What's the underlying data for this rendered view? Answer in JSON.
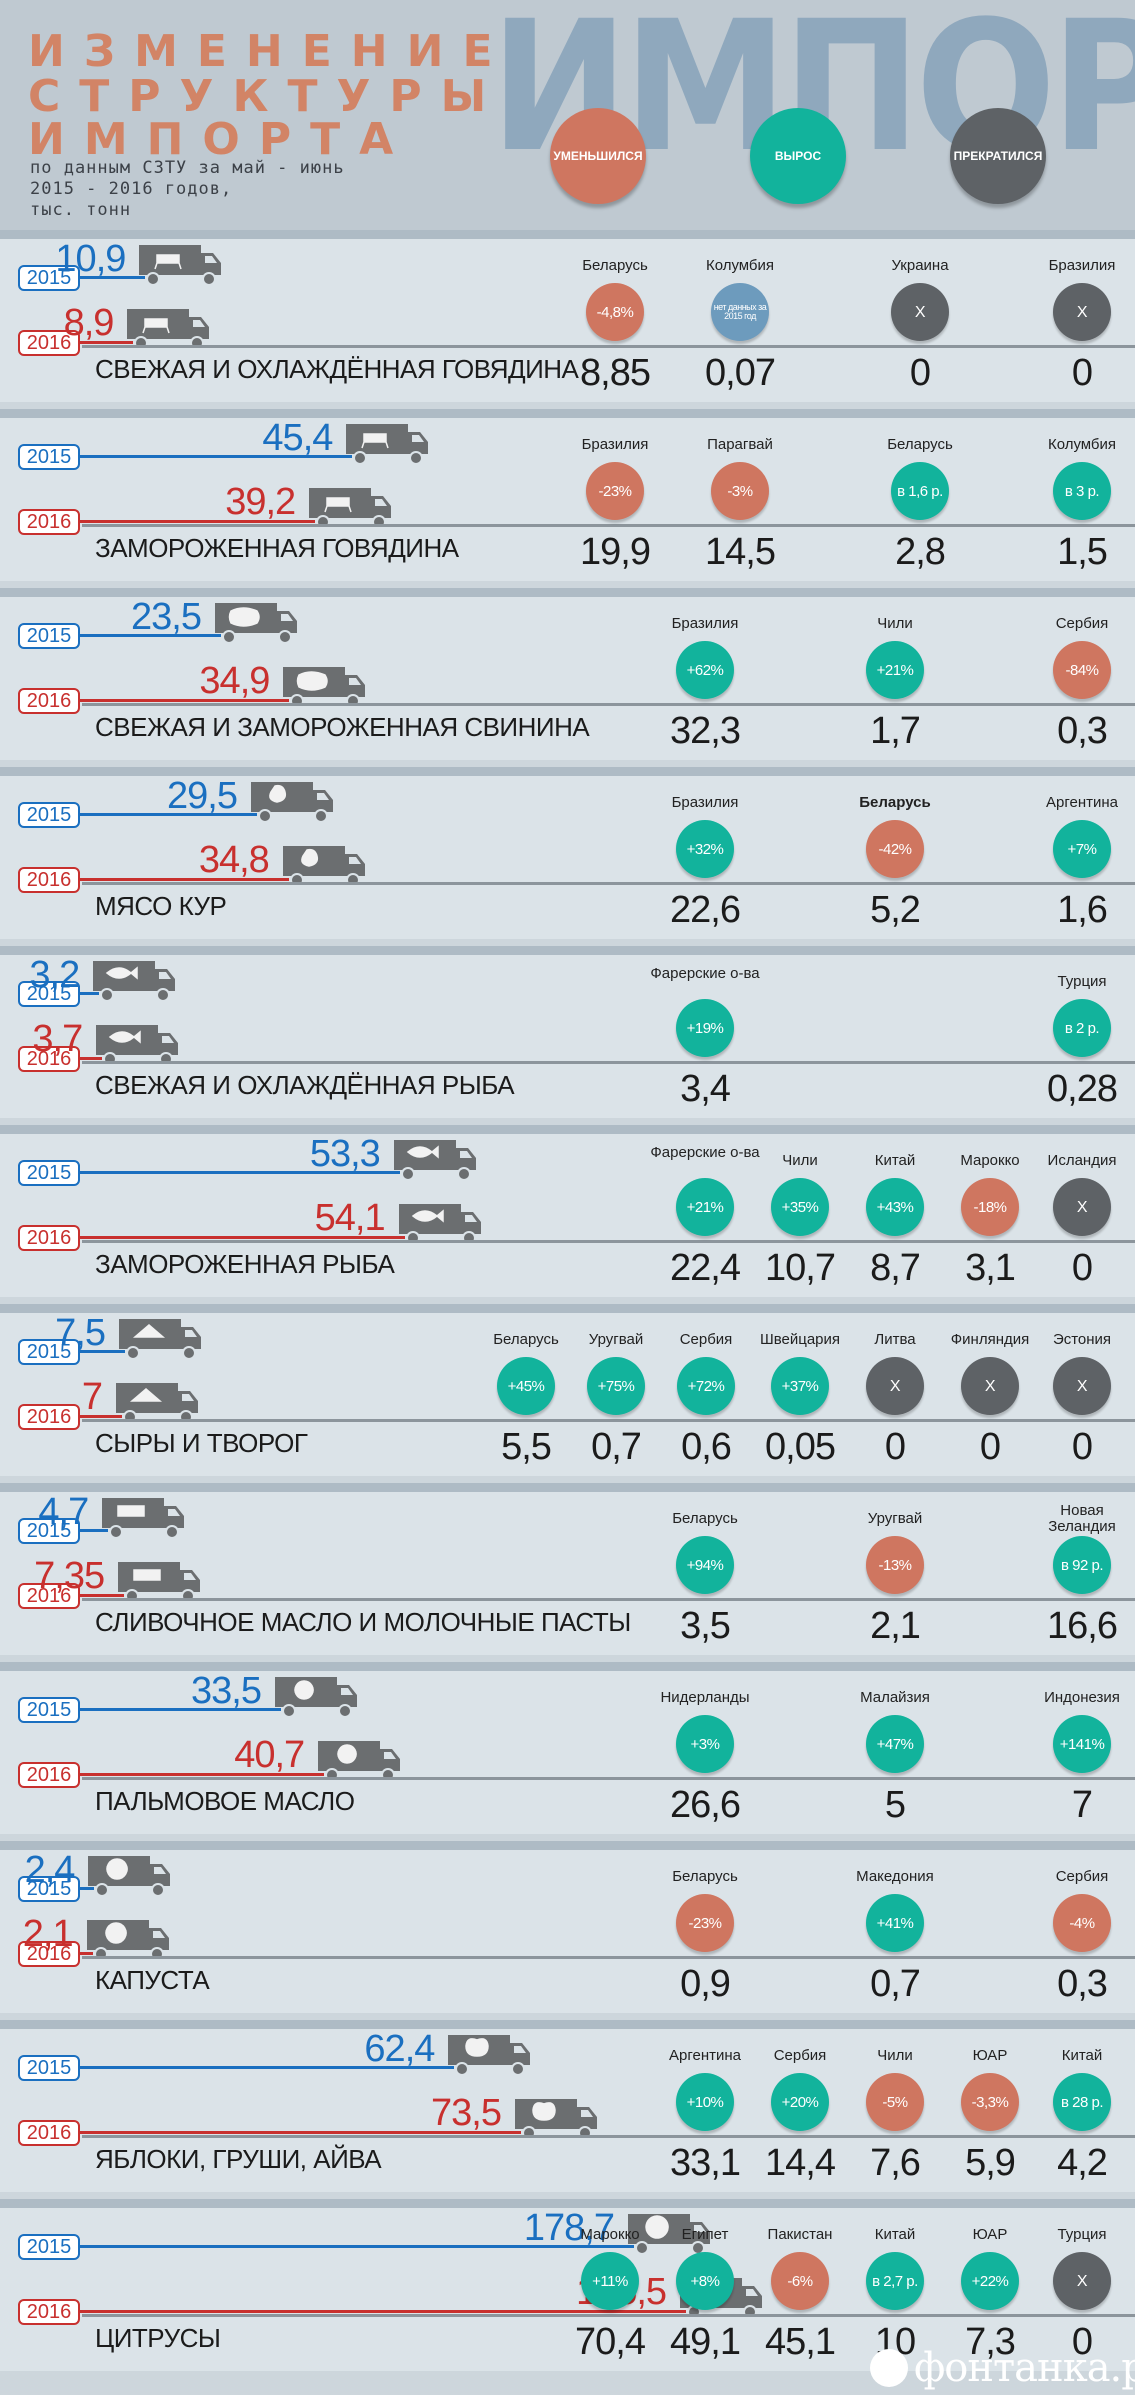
{
  "header": {
    "title_lines": [
      "ИЗМЕНЕНИЕ",
      "СТРУКТУРЫ",
      "ИМПОРТА"
    ],
    "subtitle_lines": [
      "по данным СЗТУ за май - июнь",
      "2015 - 2016 годов,",
      "тыс. тонн"
    ],
    "big_word": "ИМПОРТ",
    "legend": [
      {
        "label": "УМЕНЬШИЛСЯ",
        "color": "#cf7660",
        "icon": "decrease-circle"
      },
      {
        "label": "ВЫРОС",
        "color": "#12b39c",
        "icon": "increase-circle"
      },
      {
        "label": "ПРЕКРАТИЛСЯ",
        "color": "#5e6266",
        "icon": "stopped-circle"
      }
    ]
  },
  "year_labels": {
    "y2015": "2015",
    "y2016": "2016"
  },
  "colors": {
    "y2015": "#1a6fc0",
    "y2016": "#c8302e",
    "up": "#12b39c",
    "down": "#cf7660",
    "stopped": "#5e6266",
    "no_data": "#6d9bbd"
  },
  "chart_data": {
    "type": "bar",
    "title": "ИЗМЕНЕНИЕ СТРУКТУРЫ ИМПОРТА",
    "unit": "тыс. тонн",
    "series": [
      {
        "name": "2015",
        "values": [
          10.9,
          45.4,
          23.5,
          29.5,
          3.2,
          53.3,
          7.5,
          4.7,
          33.5,
          2.4,
          62.4,
          178.7
        ]
      },
      {
        "name": "2016",
        "values": [
          8.9,
          39.2,
          34.9,
          34.8,
          3.7,
          54.1,
          7,
          7.35,
          40.7,
          2.1,
          73.5,
          195.5
        ]
      }
    ],
    "categories": [
      "СВЕЖАЯ И ОХЛАЖДЁННАЯ ГОВЯДИНА",
      "ЗАМОРОЖЕННАЯ ГОВЯДИНА",
      "СВЕЖАЯ И ЗАМОРОЖЕННАЯ СВИНИНА",
      "МЯСО КУР",
      "СВЕЖАЯ И ОХЛАЖДЁННАЯ РЫБА",
      "ЗАМОРОЖЕННАЯ РЫБА",
      "СЫРЫ И ТВОРОГ",
      "СЛИВОЧНОЕ МАСЛО И МОЛОЧНЫЕ ПАСТЫ",
      "ПАЛЬМОВОЕ МАСЛО",
      "КАПУСТА",
      "ЯБЛОКИ, ГРУШИ, АЙВА",
      "ЦИТРУСЫ"
    ],
    "products": [
      {
        "name": "СВЕЖАЯ И ОХЛАЖДЁННАЯ ГОВЯДИНА",
        "v2015": "10,9",
        "v2016": "8,9",
        "n2015": 10.9,
        "n2016": 8.9,
        "icon": "cow-icon",
        "countries": [
          {
            "name": "Беларусь",
            "status": "down",
            "change": "-4,8%",
            "value": "8,85"
          },
          {
            "name": "Колумбия",
            "status": "nodata",
            "change": "нет данных за 2015 год",
            "value": "0,07"
          },
          {
            "name": "Украина",
            "status": "stop",
            "change": "X",
            "value": "0"
          },
          {
            "name": "Бразилия",
            "status": "stop",
            "change": "X",
            "value": "0"
          }
        ]
      },
      {
        "name": "ЗАМОРОЖЕННАЯ ГОВЯДИНА",
        "v2015": "45,4",
        "v2016": "39,2",
        "n2015": 45.4,
        "n2016": 39.2,
        "icon": "cow-icon",
        "countries": [
          {
            "name": "Бразилия",
            "status": "down",
            "change": "-23%",
            "value": "19,9"
          },
          {
            "name": "Парагвай",
            "status": "down",
            "change": "-3%",
            "value": "14,5"
          },
          {
            "name": "Беларусь",
            "status": "up",
            "change": "в 1,6 р.",
            "value": "2,8"
          },
          {
            "name": "Колумбия",
            "status": "up",
            "change": "в 3 р.",
            "value": "1,5"
          }
        ]
      },
      {
        "name": "СВЕЖАЯ И ЗАМОРОЖЕННАЯ СВИНИНА",
        "v2015": "23,5",
        "v2016": "34,9",
        "n2015": 23.5,
        "n2016": 34.9,
        "icon": "pig-icon",
        "countries": [
          {
            "name": "Бразилия",
            "status": "up",
            "change": "+62%",
            "value": "32,3"
          },
          {
            "name": "Чили",
            "status": "up",
            "change": "+21%",
            "value": "1,7"
          },
          {
            "name": "Сербия",
            "status": "down",
            "change": "-84%",
            "value": "0,3"
          }
        ]
      },
      {
        "name": "МЯСО КУР",
        "v2015": "29,5",
        "v2016": "34,8",
        "n2015": 29.5,
        "n2016": 34.8,
        "icon": "chicken-icon",
        "countries": [
          {
            "name": "Бразилия",
            "status": "up",
            "change": "+32%",
            "value": "22,6"
          },
          {
            "name": "Беларусь",
            "status": "down",
            "change": "-42%",
            "value": "5,2",
            "bold": true
          },
          {
            "name": "Аргентина",
            "status": "up",
            "change": "+7%",
            "value": "1,6"
          }
        ]
      },
      {
        "name": "СВЕЖАЯ И ОХЛАЖДЁННАЯ РЫБА",
        "v2015": "3,2",
        "v2016": "3,7",
        "n2015": 3.2,
        "n2016": 3.7,
        "icon": "fish-icon",
        "countries": [
          {
            "name": "Фарерские о-ва",
            "status": "up",
            "change": "+19%",
            "value": "3,4",
            "slot": 0
          },
          {
            "name": "Турция",
            "status": "up",
            "change": "в 2 р.",
            "value": "0,28",
            "slot": 2
          }
        ]
      },
      {
        "name": "ЗАМОРОЖЕННАЯ РЫБА",
        "v2015": "53,3",
        "v2016": "54,1",
        "n2015": 53.3,
        "n2016": 54.1,
        "icon": "fish-icon",
        "countries": [
          {
            "name": "Фарерские о-ва",
            "status": "up",
            "change": "+21%",
            "value": "22,4"
          },
          {
            "name": "Чили",
            "status": "up",
            "change": "+35%",
            "value": "10,7"
          },
          {
            "name": "Китай",
            "status": "up",
            "change": "+43%",
            "value": "8,7"
          },
          {
            "name": "Марокко",
            "status": "down",
            "change": "-18%",
            "value": "3,1"
          },
          {
            "name": "Исландия",
            "status": "stop",
            "change": "X",
            "value": "0"
          }
        ]
      },
      {
        "name": "СЫРЫ И ТВОРОГ",
        "v2015": "7,5",
        "v2016": "7",
        "n2015": 7.5,
        "n2016": 7,
        "icon": "cheese-icon",
        "countries": [
          {
            "name": "Беларусь",
            "status": "up",
            "change": "+45%",
            "value": "5,5"
          },
          {
            "name": "Уругвай",
            "status": "up",
            "change": "+75%",
            "value": "0,7"
          },
          {
            "name": "Сербия",
            "status": "up",
            "change": "+72%",
            "value": "0,6"
          },
          {
            "name": "Швейцария",
            "status": "up",
            "change": "+37%",
            "value": "0,05"
          },
          {
            "name": "Литва",
            "status": "stop",
            "change": "X",
            "value": "0"
          },
          {
            "name": "Финляндия",
            "status": "stop",
            "change": "X",
            "value": "0"
          },
          {
            "name": "Эстония",
            "status": "stop",
            "change": "X",
            "value": "0"
          }
        ]
      },
      {
        "name": "СЛИВОЧНОЕ МАСЛО И МОЛОЧНЫЕ ПАСТЫ",
        "v2015": "4,7",
        "v2016": "7,35",
        "n2015": 4.7,
        "n2016": 7.35,
        "icon": "butter-icon",
        "countries": [
          {
            "name": "Беларусь",
            "status": "up",
            "change": "+94%",
            "value": "3,5"
          },
          {
            "name": "Уругвай",
            "status": "down",
            "change": "-13%",
            "value": "2,1"
          },
          {
            "name": "Новая Зеландия",
            "status": "up",
            "change": "в 92 р.",
            "value": "16,6"
          }
        ]
      },
      {
        "name": "ПАЛЬМОВОЕ МАСЛО",
        "v2015": "33,5",
        "v2016": "40,7",
        "n2015": 33.5,
        "n2016": 40.7,
        "icon": "coconut-icon",
        "countries": [
          {
            "name": "Нидерланды",
            "status": "up",
            "change": "+3%",
            "value": "26,6"
          },
          {
            "name": "Малайзия",
            "status": "up",
            "change": "+47%",
            "value": "5"
          },
          {
            "name": "Индонезия",
            "status": "up",
            "change": "+141%",
            "value": "7"
          }
        ]
      },
      {
        "name": "КАПУСТА",
        "v2015": "2,4",
        "v2016": "2,1",
        "n2015": 2.4,
        "n2016": 2.1,
        "icon": "cabbage-icon",
        "countries": [
          {
            "name": "Беларусь",
            "status": "down",
            "change": "-23%",
            "value": "0,9"
          },
          {
            "name": "Македония",
            "status": "up",
            "change": "+41%",
            "value": "0,7"
          },
          {
            "name": "Сербия",
            "status": "down",
            "change": "-4%",
            "value": "0,3"
          }
        ]
      },
      {
        "name": "ЯБЛОКИ, ГРУШИ, АЙВА",
        "v2015": "62,4",
        "v2016": "73,5",
        "n2015": 62.4,
        "n2016": 73.5,
        "icon": "apple-icon",
        "countries": [
          {
            "name": "Аргентина",
            "status": "up",
            "change": "+10%",
            "value": "33,1"
          },
          {
            "name": "Сербия",
            "status": "up",
            "change": "+20%",
            "value": "14,4"
          },
          {
            "name": "Чили",
            "status": "down",
            "change": "-5%",
            "value": "7,6"
          },
          {
            "name": "ЮАР",
            "status": "down",
            "change": "-3,3%",
            "value": "5,9"
          },
          {
            "name": "Китай",
            "status": "up",
            "change": "в 28 р.",
            "value": "4,2"
          }
        ]
      },
      {
        "name": "ЦИТРУСЫ",
        "v2015": "178,7",
        "v2016": "195,5",
        "n2015": 178.7,
        "n2016": 195.5,
        "icon": "citrus-icon",
        "countries": [
          {
            "name": "Марокко",
            "status": "up",
            "change": "+11%",
            "value": "70,4"
          },
          {
            "name": "Египет",
            "status": "up",
            "change": "+8%",
            "value": "49,1"
          },
          {
            "name": "Пакистан",
            "status": "down",
            "change": "-6%",
            "value": "45,1"
          },
          {
            "name": "Китай",
            "status": "up",
            "change": "в 2,7 р.",
            "value": "10"
          },
          {
            "name": "ЮАР",
            "status": "up",
            "change": "+22%",
            "value": "7,3"
          },
          {
            "name": "Турция",
            "status": "stop",
            "change": "X",
            "value": "0"
          }
        ]
      }
    ]
  },
  "footer": {
    "logo_text": "фонтанка.ру"
  }
}
